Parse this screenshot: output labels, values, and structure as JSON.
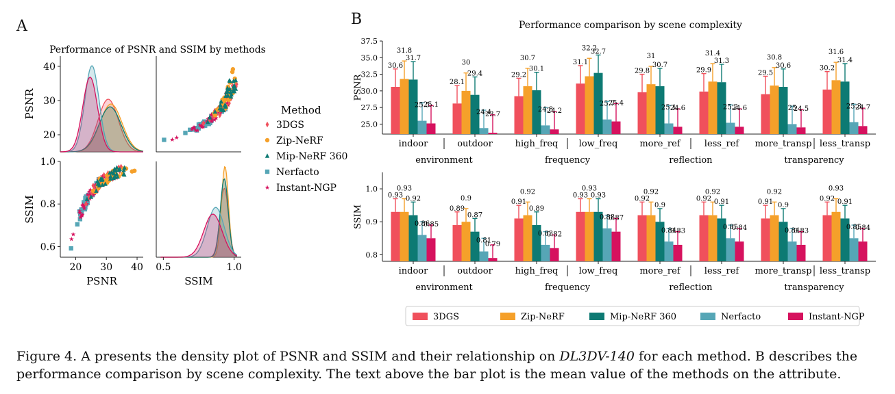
{
  "panel_a_letter": "A",
  "panel_b_letter": "B",
  "caption": {
    "part1": "Figure 4.  A presents the density plot of PSNR and SSIM and their relationship on ",
    "dataset": "DL3DV-140",
    "part2": " for each method.  B describes the performance comparison by scene complexity. The text above the bar plot is the mean value of the methods on the attribute."
  },
  "colors": {
    "3DGS": "#f0505c",
    "Zip-NeRF": "#f5a02a",
    "Mip-NeRF 360": "#0d7a73",
    "Nerfacto": "#56a6b6",
    "Instant-NGP": "#d6125e"
  },
  "chart_data": [
    {
      "type": "scatter",
      "title": "Performance of PSNR and SSIM by methods",
      "legend_title": "Method",
      "legend_placement": "right",
      "legend": [
        {
          "name": "3DGS",
          "marker": "diamond"
        },
        {
          "name": "Zip-NeRF",
          "marker": "circle"
        },
        {
          "name": "Mip-NeRF 360",
          "marker": "triangle"
        },
        {
          "name": "Nerfacto",
          "marker": "square"
        },
        {
          "name": "Instant-NGP",
          "marker": "star"
        }
      ],
      "variables": [
        "PSNR",
        "SSIM"
      ],
      "psnr_ticks": [
        20,
        30,
        40
      ],
      "ssim_ticks_diag": [
        0.5,
        1.0
      ],
      "ssim_ticks_left": [
        0.6,
        0.8,
        1.0
      ],
      "psnr_range": [
        15,
        42
      ],
      "ssim_range": [
        0.55,
        1.0
      ],
      "ssim_diag_range": [
        0.45,
        1.05
      ],
      "density_psnr": [
        {
          "name": "3DGS",
          "mean": 30.6,
          "sd": 3.3,
          "peak": 0.55
        },
        {
          "name": "Zip-NeRF",
          "mean": 31.5,
          "sd": 3.6,
          "peak": 0.5
        },
        {
          "name": "Mip-NeRF 360",
          "mean": 31.2,
          "sd": 3.6,
          "peak": 0.47
        },
        {
          "name": "Nerfacto",
          "mean": 25.3,
          "sd": 2.3,
          "peak": 0.9
        },
        {
          "name": "Instant-NGP",
          "mean": 24.7,
          "sd": 2.4,
          "peak": 0.78
        }
      ],
      "density_ssim": [
        {
          "name": "3DGS",
          "mean": 0.93,
          "sd": 0.03,
          "peak": 0.72
        },
        {
          "name": "Zip-NeRF",
          "mean": 0.935,
          "sd": 0.025,
          "peak": 0.95
        },
        {
          "name": "Mip-NeRF 360",
          "mean": 0.93,
          "sd": 0.028,
          "peak": 0.82
        },
        {
          "name": "Nerfacto",
          "mean": 0.87,
          "sd": 0.06,
          "peak": 0.52
        },
        {
          "name": "Instant-NGP",
          "mean": 0.85,
          "sd": 0.065,
          "peak": 0.45
        }
      ]
    },
    {
      "type": "bar",
      "title": "Performance comparison by scene complexity",
      "groups": [
        "environment",
        "frequency",
        "reflection",
        "transparency"
      ],
      "categories": [
        "indoor",
        "outdoor",
        "high_freq",
        "low_freq",
        "more_ref",
        "less_ref",
        "more_transp",
        "less_transp"
      ],
      "series_names": [
        "3DGS",
        "Zip-NeRF",
        "Mip-NeRF 360",
        "Nerfacto",
        "Instant-NGP"
      ],
      "legend_placement": "bottom",
      "psnr": {
        "ylabel": "PSNR",
        "ylim": [
          23.5,
          37.5
        ],
        "yticks": [
          "25.0",
          "27.5",
          "30.0",
          "32.5",
          "35.0",
          "37.5"
        ],
        "values": [
          [
            30.6,
            28.1,
            29.2,
            31.1,
            29.8,
            29.9,
            29.5,
            30.2
          ],
          [
            31.8,
            30,
            30.7,
            32.2,
            31,
            31.4,
            30.8,
            31.6
          ],
          [
            31.7,
            29.4,
            30.1,
            32.7,
            30.7,
            31.3,
            30.6,
            31.4
          ],
          [
            25.5,
            24.4,
            24.8,
            25.7,
            25.1,
            25.2,
            25,
            25.3
          ],
          [
            25.1,
            23.7,
            24.2,
            25.4,
            24.6,
            24.6,
            24.5,
            24.7
          ]
        ]
      },
      "ssim": {
        "ylabel": "SSIM",
        "ylim": [
          0.78,
          1.05
        ],
        "yticks": [
          "0.8",
          "0.9",
          "1.0"
        ],
        "values": [
          [
            0.93,
            0.89,
            0.91,
            0.93,
            0.92,
            0.92,
            0.91,
            0.92
          ],
          [
            0.93,
            0.9,
            0.92,
            0.93,
            0.92,
            0.92,
            0.92,
            0.93
          ],
          [
            0.92,
            0.87,
            0.89,
            0.93,
            0.9,
            0.91,
            0.9,
            0.91
          ],
          [
            0.86,
            0.81,
            0.83,
            0.88,
            0.84,
            0.85,
            0.84,
            0.85
          ],
          [
            0.85,
            0.79,
            0.82,
            0.87,
            0.83,
            0.84,
            0.83,
            0.84
          ]
        ]
      }
    }
  ]
}
